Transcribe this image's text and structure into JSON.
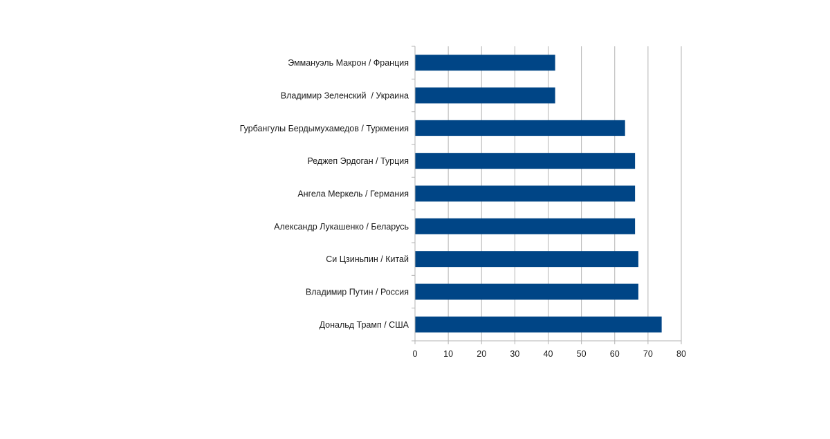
{
  "chart_data": {
    "type": "bar",
    "orientation": "horizontal",
    "categories": [
      "Эммануэль Макрон / Франция",
      "Владимир Зеленский  / Украина",
      "Гурбангулы Бердымухамедов / Туркмения",
      "Реджеп Эрдоган / Турция",
      "Ангела Меркель / Германия",
      "Александр Лукашенко / Беларусь",
      "Си Цзиньпин / Китай",
      "Владимир Путин / Россия",
      "Дональд Трамп / США"
    ],
    "values": [
      42,
      42,
      63,
      66,
      66,
      66,
      67,
      67,
      74
    ],
    "xlim": [
      0,
      80
    ],
    "x_ticks": [
      "0",
      "10",
      "20",
      "30",
      "40",
      "50",
      "60",
      "70",
      "80"
    ],
    "grid": "vertical",
    "legend": "none",
    "bar_color": "#004586",
    "title": "",
    "xlabel": "",
    "ylabel": ""
  }
}
